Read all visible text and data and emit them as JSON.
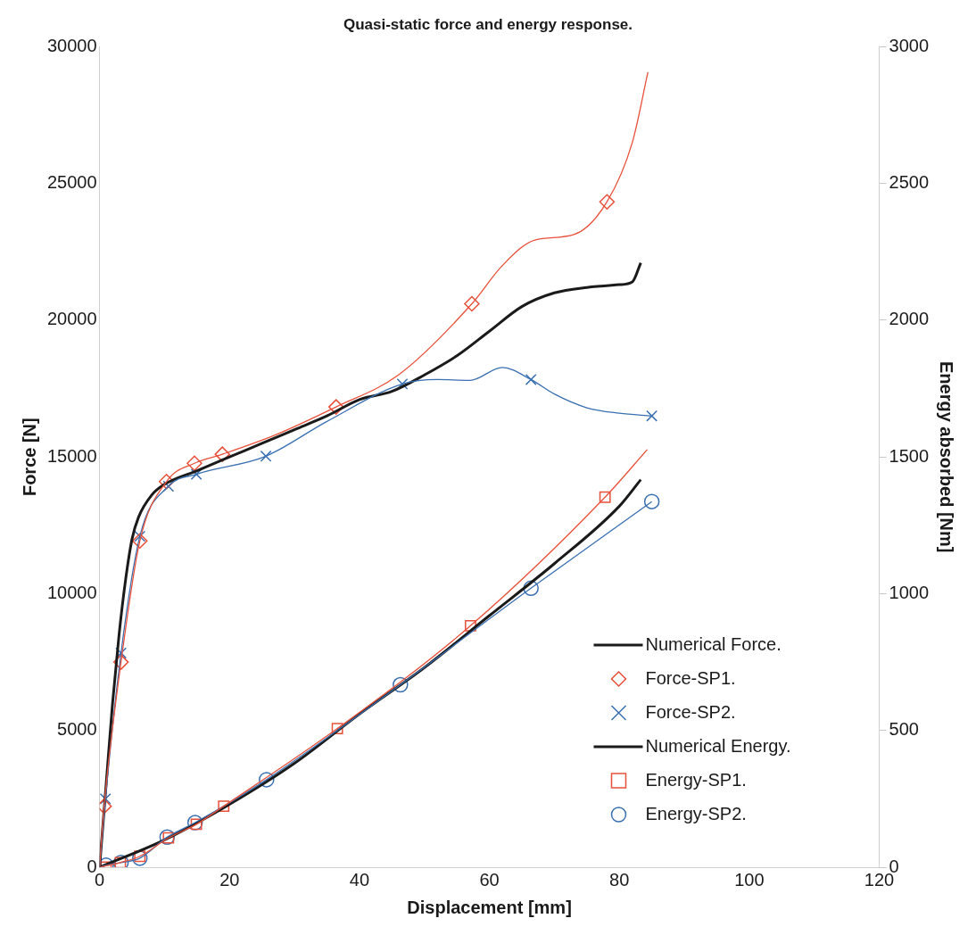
{
  "chart_data": {
    "type": "line",
    "title": "Quasi-static force and energy response.",
    "xlabel": "Displacement [mm]",
    "ylabel": "Force [N]",
    "y2label": "Energy absorbed [Nm]",
    "xlim": [
      0,
      120
    ],
    "xticks": [
      0,
      20,
      40,
      60,
      80,
      100,
      120
    ],
    "ylim": [
      0,
      30000
    ],
    "yticks": [
      0,
      5000,
      10000,
      15000,
      20000,
      25000,
      30000
    ],
    "y2lim": [
      0,
      3000
    ],
    "y2ticks": [
      0,
      500,
      1000,
      1500,
      2000,
      2500,
      3000
    ],
    "grid": false,
    "legend": "bottom right",
    "series": [
      {
        "type": "line",
        "color": "#e8503a",
        "x": [
          0,
          0.7,
          3.3,
          6.2,
          10.3,
          14.6,
          18.9,
          27,
          36.4,
          46,
          57.3,
          62,
          67,
          73,
          78.1,
          82,
          84.4
        ],
        "values": [
          0,
          2230,
          7500,
          11930,
          14100,
          14770,
          15100,
          15800,
          16830,
          18000,
          20600,
          22000,
          22930,
          23130,
          24330,
          26500,
          29070
        ]
      },
      {
        "type": "line",
        "color": "#3a6fb0",
        "x": [
          0,
          0.9,
          3.3,
          6.2,
          10.6,
          14.9,
          25.6,
          35,
          46.6,
          52,
          57,
          62,
          66.4,
          70,
          75,
          80,
          85
        ],
        "values": [
          0,
          2500,
          7830,
          12100,
          13930,
          14370,
          15030,
          16300,
          17670,
          17830,
          17800,
          18270,
          17830,
          17300,
          16800,
          16600,
          16500
        ]
      },
      {
        "type": "line",
        "name": "Numerical Force.",
        "color": "#1a1a1a",
        "x": [
          0,
          1,
          2,
          3,
          4,
          5,
          6,
          8,
          10,
          15,
          20,
          25,
          30,
          35,
          40,
          45,
          50,
          55,
          60,
          65,
          70,
          75,
          80,
          82,
          83.3
        ],
        "values": [
          0,
          3000,
          6000,
          8500,
          10500,
          12000,
          12800,
          13600,
          14000,
          14500,
          15000,
          15500,
          16000,
          16500,
          17100,
          17400,
          18000,
          18700,
          19600,
          20500,
          21000,
          21200,
          21300,
          21400,
          22100
        ]
      },
      {
        "type": "scatter",
        "name": "Force-SP1.",
        "color": "#e8503a",
        "marker": "diamond",
        "x": [
          0.7,
          3.3,
          6.2,
          10.3,
          14.6,
          18.9,
          36.4,
          57.3,
          78.1
        ],
        "values": [
          2230,
          7500,
          11930,
          14100,
          14770,
          15100,
          16830,
          20600,
          24330
        ]
      },
      {
        "type": "scatter",
        "name": "Force-SP2.",
        "color": "#3a6fb0",
        "marker": "cross",
        "x": [
          0.9,
          3.3,
          6.2,
          10.6,
          14.9,
          25.6,
          46.6,
          66.4,
          85
        ],
        "values": [
          2500,
          7830,
          12100,
          13930,
          14370,
          15030,
          17670,
          17830,
          16500
        ]
      },
      {
        "type": "line",
        "axis": "y2",
        "color": "#e8503a",
        "x": [
          0,
          3.2,
          6.2,
          10.6,
          14.9,
          19.1,
          36.6,
          57.1,
          77.8,
          84.3
        ],
        "values": [
          0,
          17,
          40,
          107,
          157,
          223,
          507,
          883,
          1353,
          1527
        ]
      },
      {
        "type": "line",
        "axis": "y2",
        "color": "#3a6fb0",
        "x": [
          0,
          1,
          3.3,
          6.2,
          10.4,
          14.7,
          25.7,
          46.3,
          66.4,
          85
        ],
        "values": [
          0,
          7,
          17,
          33,
          110,
          163,
          320,
          667,
          1020,
          1337
        ]
      },
      {
        "type": "line",
        "axis": "y2",
        "name": "Numerical Energy.",
        "color": "#1a1a1a",
        "x": [
          0,
          10,
          20,
          30,
          40,
          50,
          60,
          70,
          80,
          83.3
        ],
        "values": [
          0,
          100,
          230,
          380,
          560,
          730,
          920,
          1110,
          1320,
          1417
        ]
      },
      {
        "type": "scatter",
        "axis": "y2",
        "name": "Energy-SP1.",
        "color": "#e8503a",
        "marker": "square",
        "x": [
          1,
          3.2,
          6.2,
          10.6,
          14.9,
          19.1,
          36.6,
          57.1,
          77.8
        ],
        "values": [
          0,
          17,
          40,
          107,
          157,
          223,
          507,
          883,
          1353
        ]
      },
      {
        "type": "scatter",
        "axis": "y2",
        "name": "Energy-SP2.",
        "color": "#3a6fb0",
        "marker": "circle",
        "x": [
          1,
          3.3,
          6.2,
          10.4,
          14.7,
          25.7,
          46.3,
          66.4,
          85
        ],
        "values": [
          7,
          17,
          33,
          110,
          163,
          320,
          667,
          1020,
          1337
        ]
      }
    ]
  }
}
